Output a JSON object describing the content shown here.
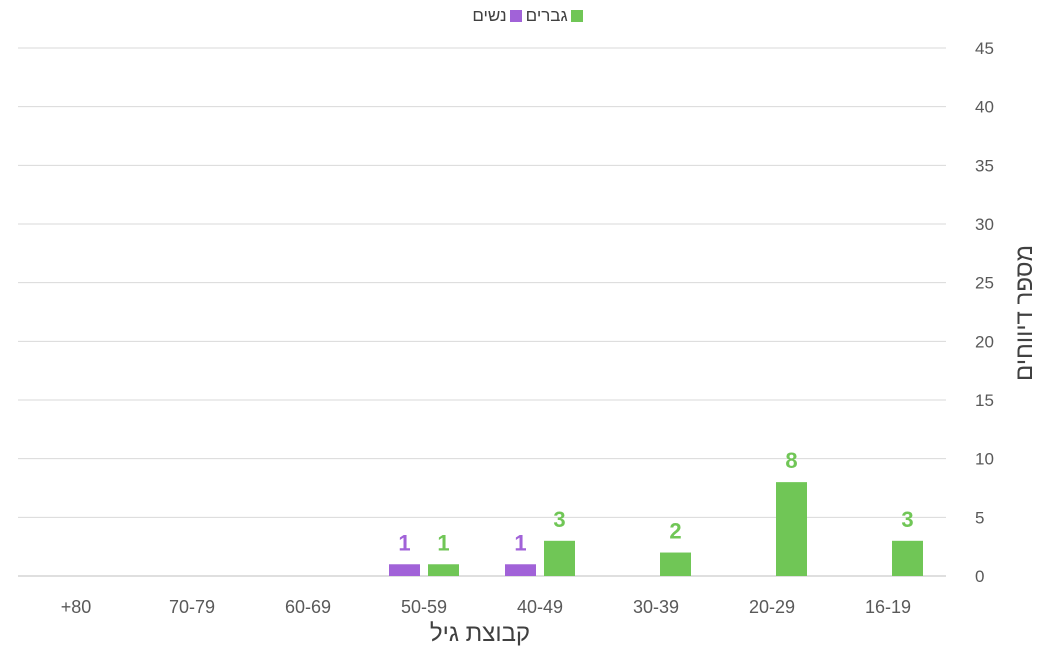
{
  "legend": {
    "series_a": "גברים",
    "series_b": "נשים"
  },
  "chart_data": {
    "type": "bar",
    "xlabel": "קבוצת גיל",
    "ylabel": "מספר דיווחים",
    "ylim": [
      0,
      45
    ],
    "yticks": [
      0,
      5,
      10,
      15,
      20,
      25,
      30,
      35,
      40,
      45
    ],
    "categories": [
      "16-19",
      "20-29",
      "30-39",
      "40-49",
      "50-59",
      "60-69",
      "70-79",
      "+80"
    ],
    "category_order": "right-to-left",
    "grid": true,
    "legend_position": "top",
    "series": [
      {
        "name": "גברים",
        "color": "#70c656",
        "values": [
          3,
          8,
          2,
          3,
          1,
          0,
          0,
          0
        ]
      },
      {
        "name": "נשים",
        "color": "#a162d8",
        "values": [
          0,
          0,
          0,
          1,
          1,
          0,
          0,
          0
        ]
      }
    ]
  }
}
